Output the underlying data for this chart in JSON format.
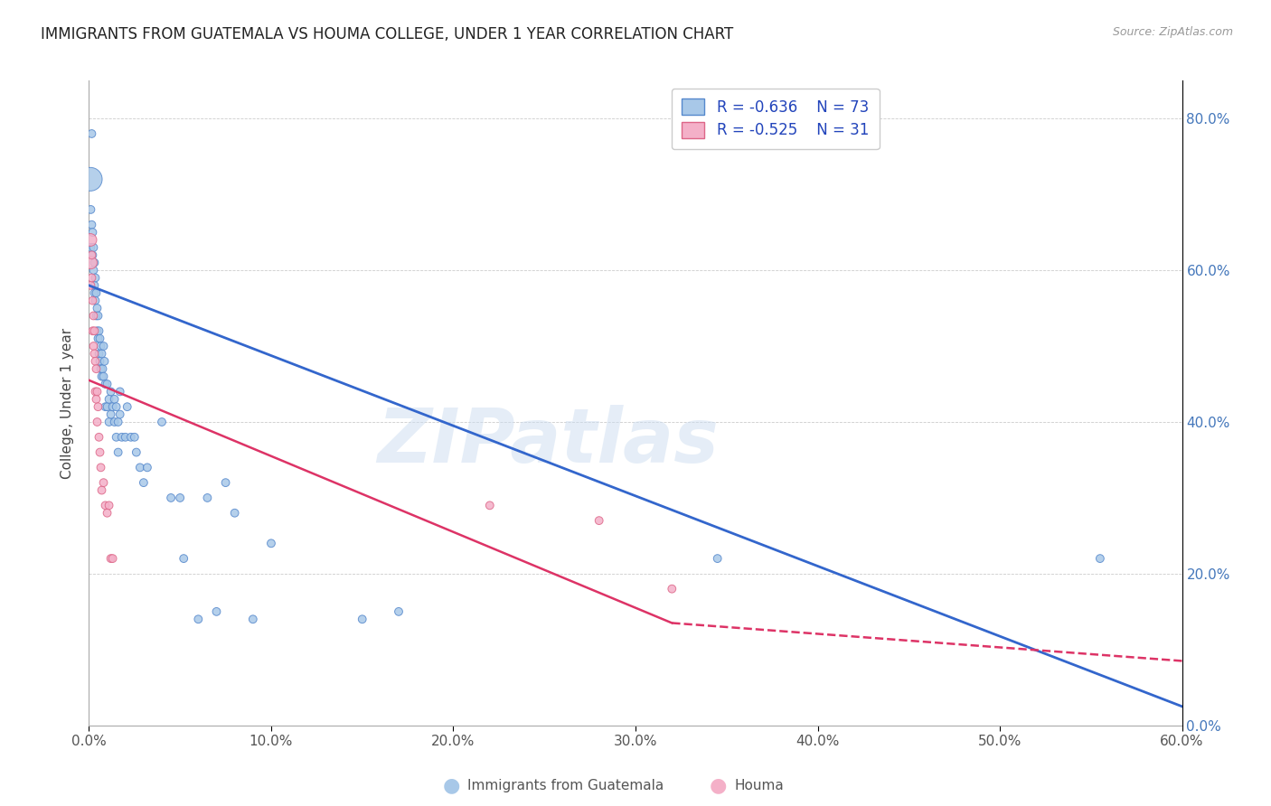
{
  "title": "IMMIGRANTS FROM GUATEMALA VS HOUMA COLLEGE, UNDER 1 YEAR CORRELATION CHART",
  "source": "Source: ZipAtlas.com",
  "ylabel": "College, Under 1 year",
  "xmin": 0.0,
  "xmax": 0.6,
  "ymin": 0.0,
  "ymax": 0.85,
  "blue_label": "Immigrants from Guatemala",
  "pink_label": "Houma",
  "blue_R_text": "R = -0.636",
  "blue_N_text": "N = 73",
  "pink_R_text": "R = -0.525",
  "pink_N_text": "N = 31",
  "blue_color": "#a8c8e8",
  "blue_edge": "#5588cc",
  "pink_color": "#f4b0c8",
  "pink_edge": "#dd6688",
  "blue_line_color": "#3366cc",
  "pink_line_color": "#dd3366",
  "legend_text_color": "#2244bb",
  "watermark_text": "ZIPatlas",
  "blue_points": [
    [
      0.0008,
      0.72
    ],
    [
      0.001,
      0.68
    ],
    [
      0.001,
      0.63
    ],
    [
      0.0015,
      0.78
    ],
    [
      0.0015,
      0.66
    ],
    [
      0.002,
      0.65
    ],
    [
      0.002,
      0.62
    ],
    [
      0.0025,
      0.63
    ],
    [
      0.0025,
      0.6
    ],
    [
      0.003,
      0.61
    ],
    [
      0.003,
      0.58
    ],
    [
      0.003,
      0.57
    ],
    [
      0.0035,
      0.59
    ],
    [
      0.0035,
      0.56
    ],
    [
      0.004,
      0.57
    ],
    [
      0.004,
      0.54
    ],
    [
      0.0045,
      0.55
    ],
    [
      0.0045,
      0.52
    ],
    [
      0.005,
      0.54
    ],
    [
      0.005,
      0.51
    ],
    [
      0.0055,
      0.52
    ],
    [
      0.0055,
      0.49
    ],
    [
      0.006,
      0.51
    ],
    [
      0.006,
      0.48
    ],
    [
      0.0065,
      0.5
    ],
    [
      0.0065,
      0.47
    ],
    [
      0.007,
      0.49
    ],
    [
      0.007,
      0.46
    ],
    [
      0.0075,
      0.47
    ],
    [
      0.008,
      0.5
    ],
    [
      0.008,
      0.46
    ],
    [
      0.0085,
      0.48
    ],
    [
      0.009,
      0.45
    ],
    [
      0.009,
      0.42
    ],
    [
      0.01,
      0.45
    ],
    [
      0.01,
      0.42
    ],
    [
      0.011,
      0.43
    ],
    [
      0.011,
      0.4
    ],
    [
      0.012,
      0.44
    ],
    [
      0.012,
      0.41
    ],
    [
      0.013,
      0.42
    ],
    [
      0.014,
      0.43
    ],
    [
      0.014,
      0.4
    ],
    [
      0.015,
      0.42
    ],
    [
      0.015,
      0.38
    ],
    [
      0.016,
      0.4
    ],
    [
      0.016,
      0.36
    ],
    [
      0.017,
      0.44
    ],
    [
      0.017,
      0.41
    ],
    [
      0.018,
      0.38
    ],
    [
      0.02,
      0.38
    ],
    [
      0.021,
      0.42
    ],
    [
      0.023,
      0.38
    ],
    [
      0.025,
      0.38
    ],
    [
      0.026,
      0.36
    ],
    [
      0.028,
      0.34
    ],
    [
      0.03,
      0.32
    ],
    [
      0.032,
      0.34
    ],
    [
      0.04,
      0.4
    ],
    [
      0.045,
      0.3
    ],
    [
      0.05,
      0.3
    ],
    [
      0.052,
      0.22
    ],
    [
      0.06,
      0.14
    ],
    [
      0.065,
      0.3
    ],
    [
      0.07,
      0.15
    ],
    [
      0.075,
      0.32
    ],
    [
      0.08,
      0.28
    ],
    [
      0.09,
      0.14
    ],
    [
      0.1,
      0.24
    ],
    [
      0.15,
      0.14
    ],
    [
      0.17,
      0.15
    ],
    [
      0.345,
      0.22
    ],
    [
      0.555,
      0.22
    ]
  ],
  "blue_sizes": [
    350,
    40,
    40,
    40,
    40,
    40,
    40,
    40,
    40,
    40,
    40,
    40,
    40,
    40,
    40,
    40,
    40,
    40,
    40,
    40,
    40,
    40,
    40,
    40,
    40,
    40,
    40,
    40,
    40,
    40,
    40,
    40,
    40,
    40,
    40,
    40,
    40,
    40,
    40,
    40,
    40,
    40,
    40,
    40,
    40,
    40,
    40,
    40,
    40,
    40,
    40,
    40,
    40,
    40,
    40,
    40,
    40,
    40,
    40,
    40,
    40,
    40,
    40,
    40,
    40,
    40,
    40,
    40,
    40,
    40,
    40,
    40,
    40
  ],
  "pink_points": [
    [
      0.0008,
      0.64
    ],
    [
      0.001,
      0.61
    ],
    [
      0.001,
      0.58
    ],
    [
      0.0015,
      0.62
    ],
    [
      0.0015,
      0.59
    ],
    [
      0.002,
      0.56
    ],
    [
      0.002,
      0.52
    ],
    [
      0.0025,
      0.54
    ],
    [
      0.0025,
      0.5
    ],
    [
      0.003,
      0.52
    ],
    [
      0.003,
      0.49
    ],
    [
      0.0035,
      0.48
    ],
    [
      0.0035,
      0.44
    ],
    [
      0.004,
      0.47
    ],
    [
      0.004,
      0.43
    ],
    [
      0.0045,
      0.44
    ],
    [
      0.0045,
      0.4
    ],
    [
      0.005,
      0.42
    ],
    [
      0.0055,
      0.38
    ],
    [
      0.006,
      0.36
    ],
    [
      0.0065,
      0.34
    ],
    [
      0.007,
      0.31
    ],
    [
      0.008,
      0.32
    ],
    [
      0.009,
      0.29
    ],
    [
      0.01,
      0.28
    ],
    [
      0.011,
      0.29
    ],
    [
      0.012,
      0.22
    ],
    [
      0.013,
      0.22
    ],
    [
      0.22,
      0.29
    ],
    [
      0.28,
      0.27
    ],
    [
      0.32,
      0.18
    ]
  ],
  "pink_sizes": [
    100,
    100,
    40,
    40,
    40,
    40,
    40,
    40,
    40,
    40,
    40,
    40,
    40,
    40,
    40,
    40,
    40,
    40,
    40,
    40,
    40,
    40,
    40,
    40,
    40,
    40,
    40,
    40,
    40,
    40,
    40
  ],
  "xticks": [
    0.0,
    0.1,
    0.2,
    0.3,
    0.4,
    0.5,
    0.6
  ],
  "xtick_labels": [
    "0.0%",
    "10.0%",
    "20.0%",
    "30.0%",
    "40.0%",
    "50.0%",
    "60.0%"
  ],
  "yticks": [
    0.0,
    0.2,
    0.4,
    0.6,
    0.8
  ],
  "ytick_labels_right": [
    "0.0%",
    "20.0%",
    "40.0%",
    "60.0%",
    "80.0%"
  ],
  "blue_trend": [
    0.0,
    0.58,
    0.6,
    0.025
  ],
  "pink_trend_solid": [
    0.0,
    0.455,
    0.32,
    0.135
  ],
  "pink_trend_dashed": [
    0.32,
    0.135,
    0.6,
    0.085
  ]
}
